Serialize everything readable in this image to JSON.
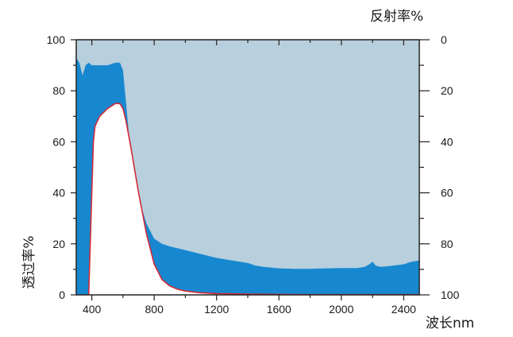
{
  "chart_data": {
    "type": "area",
    "title": "",
    "xlabel": "波长nm",
    "ylabel_left": "透过率%",
    "ylabel_right": "反射率%",
    "xlim": [
      300,
      2500
    ],
    "ylim_left": [
      0,
      100
    ],
    "ylim_right_inverted": [
      0,
      100
    ],
    "x_ticks": [
      400,
      800,
      1200,
      1600,
      2000,
      2400
    ],
    "y_ticks_left": [
      0,
      20,
      40,
      60,
      80,
      100
    ],
    "y_ticks_right": [
      0,
      20,
      40,
      60,
      80,
      100
    ],
    "colors": {
      "background_region": "#b8cfdd",
      "blue_band": "#1788cf",
      "inner_region": "#ffffff",
      "transmittance_line": "#d42a3a",
      "axis": "#222222"
    },
    "series": [
      {
        "axis": "right",
        "x": [
          300,
          320,
          340,
          360,
          380,
          400,
          450,
          500,
          550,
          580,
          600,
          620,
          650,
          700,
          750,
          800,
          850,
          900,
          1000,
          1100,
          1200,
          1300,
          1400,
          1450,
          1500,
          1600,
          1700,
          1800,
          1900,
          2000,
          2100,
          2150,
          2180,
          2200,
          2220,
          2250,
          2300,
          2400,
          2450,
          2500
        ],
        "values": [
          7,
          9,
          14,
          10,
          9,
          10,
          10,
          10,
          9,
          9,
          12,
          25,
          45,
          62,
          72,
          78,
          80,
          81,
          82.5,
          84,
          85.5,
          86.5,
          87.5,
          88.5,
          89,
          89.6,
          89.8,
          89.8,
          89.6,
          89.5,
          89.5,
          89,
          88,
          87,
          88.5,
          89,
          88.8,
          88,
          87,
          86.5
        ]
      },
      {
        "axis": "left",
        "x": [
          320,
          380,
          400,
          410,
          420,
          450,
          500,
          550,
          580,
          600,
          620,
          650,
          700,
          750,
          800,
          850,
          900,
          950,
          1000,
          1100,
          1200,
          1300,
          1400,
          1600,
          1800,
          2000,
          2200,
          2500
        ],
        "values": [
          0,
          0,
          40,
          60,
          66,
          70,
          73,
          75,
          75,
          73,
          68,
          58,
          40,
          24,
          12,
          6,
          3.5,
          2.2,
          1.5,
          0.8,
          0.5,
          0.4,
          0.3,
          0.2,
          0.1,
          0.1,
          0.1,
          0.1
        ]
      }
    ]
  }
}
